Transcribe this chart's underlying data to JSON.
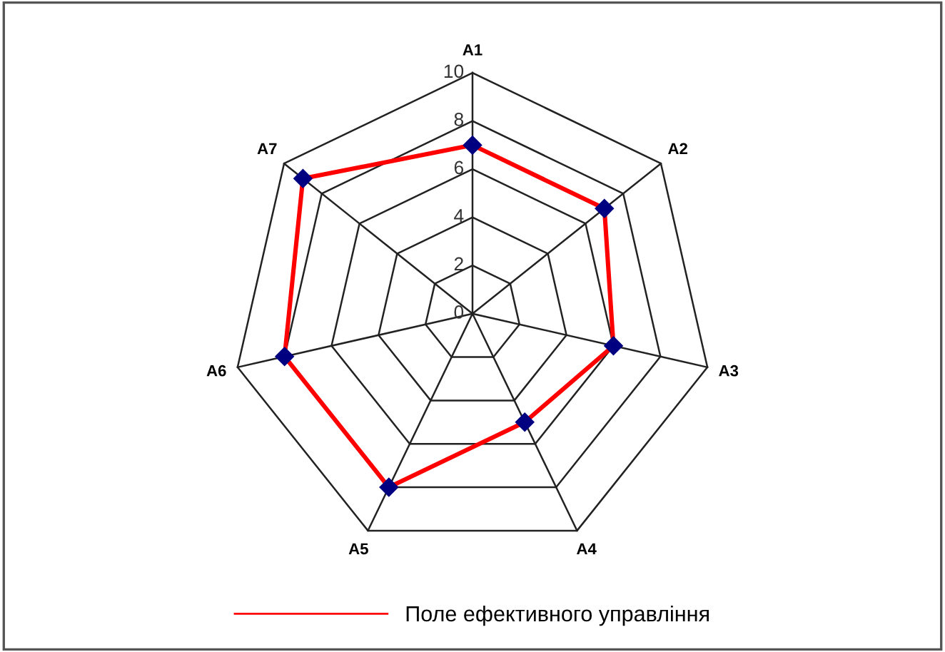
{
  "chart_data": {
    "type": "radar",
    "categories": [
      "A1",
      "A2",
      "A3",
      "A4",
      "A5",
      "A6",
      "A7"
    ],
    "series": [
      {
        "name": "Поле ефективного управління",
        "color": "#ff0000",
        "values": [
          7,
          7,
          6,
          5,
          8,
          8,
          9
        ]
      }
    ],
    "ylim": [
      0,
      10
    ],
    "yticks": [
      0,
      2,
      4,
      6,
      8,
      10
    ],
    "grid": true,
    "marker": "diamond",
    "line_style": "solid",
    "legend": "bottom"
  }
}
